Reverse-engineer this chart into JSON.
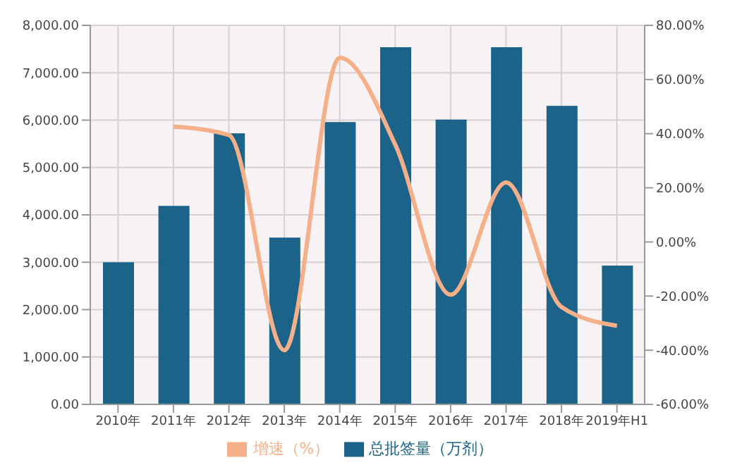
{
  "chart_data": {
    "type": "bar",
    "categories": [
      "2010年",
      "2011年",
      "2012年",
      "2013年",
      "2014年",
      "2015年",
      "2016年",
      "2017年",
      "2018年",
      "2019年H1"
    ],
    "series": [
      {
        "name": "总批签量（万剂）",
        "color": "#1b6389",
        "values": [
          3000,
          4190,
          5720,
          3520,
          5960,
          7540,
          6010,
          7540,
          6300,
          2930
        ]
      },
      {
        "name": "增速（%）",
        "type": "line",
        "axis": "y2",
        "color": "#f5b08a",
        "values": [
          null,
          42.6,
          39.5,
          -40,
          68,
          36,
          -19.5,
          22,
          -24,
          -31
        ]
      }
    ],
    "ylim": [
      0,
      8000
    ],
    "yticks": [
      {
        "value": 0,
        "label": "0.00"
      },
      {
        "value": 1000,
        "label": "1,000.00"
      },
      {
        "value": 2000,
        "label": "2,000.00"
      },
      {
        "value": 3000,
        "label": "3,000.00"
      },
      {
        "value": 4000,
        "label": "4,000.00"
      },
      {
        "value": 5000,
        "label": "5,000.00"
      },
      {
        "value": 6000,
        "label": "6,000.00"
      },
      {
        "value": 7000,
        "label": "7,000.00"
      },
      {
        "value": 8000,
        "label": "8,000.00"
      }
    ],
    "y2lim": [
      -60,
      80
    ],
    "y2ticks": [
      {
        "value": -60,
        "label": "-60.00%"
      },
      {
        "value": -40,
        "label": "-40.00%"
      },
      {
        "value": -20,
        "label": "-20.00%"
      },
      {
        "value": 0,
        "label": "0.00%"
      },
      {
        "value": 20,
        "label": "20.00%"
      },
      {
        "value": 40,
        "label": "40.00%"
      },
      {
        "value": 60,
        "label": "60.00%"
      },
      {
        "value": 80,
        "label": "80.00%"
      }
    ],
    "grid": true,
    "legend": "bottom",
    "marker": "none",
    "line_style": "solid"
  }
}
